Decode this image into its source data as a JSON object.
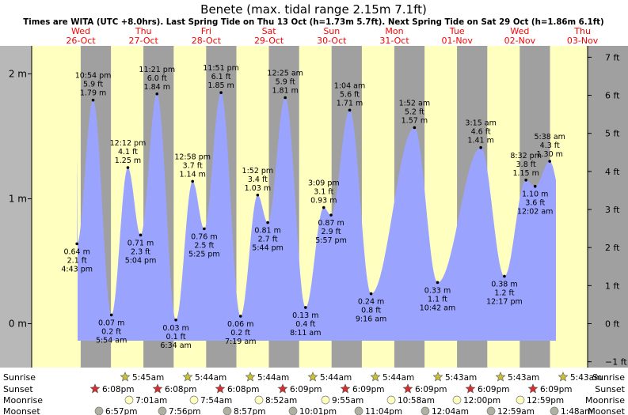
{
  "header": {
    "title": "Benete (max. tidal range 2.15m 7.1ft)",
    "subtitle": "Times are WITA (UTC +8.0hrs). Last Spring Tide on Thu 13 Oct (h=1.73m 5.7ft). Next Spring Tide on Sat 29 Oct (h=1.86m 6.1ft)"
  },
  "colors": {
    "day": "#ffffc0",
    "night": "#a0a0a0",
    "tide": "#9aa4ff",
    "day_label": "#ff0000",
    "left_margin": "#b8b8b8",
    "sun_star": "#c8c03c",
    "sunset_star": "#d03030",
    "moonrise": "#ffffc0",
    "moonset": "#b0b0a0"
  },
  "days": [
    {
      "dow": "Wed",
      "date": "26-Oct"
    },
    {
      "dow": "Thu",
      "date": "27-Oct"
    },
    {
      "dow": "Fri",
      "date": "28-Oct"
    },
    {
      "dow": "Sat",
      "date": "29-Oct"
    },
    {
      "dow": "Sun",
      "date": "30-Oct"
    },
    {
      "dow": "Mon",
      "date": "31-Oct"
    },
    {
      "dow": "Tue",
      "date": "01-Nov"
    },
    {
      "dow": "Wed",
      "date": "02-Nov"
    },
    {
      "dow": "Thu",
      "date": "03-Nov"
    }
  ],
  "rows": {
    "sunrise": {
      "label": "Sunrise",
      "times": [
        "5:45am",
        "5:44am",
        "5:44am",
        "5:44am",
        "5:44am",
        "5:43am",
        "5:43am",
        "5:43am"
      ]
    },
    "sunset": {
      "label": "Sunset",
      "times": [
        "6:08pm",
        "6:08pm",
        "6:08pm",
        "6:09pm",
        "6:09pm",
        "6:09pm",
        "6:09pm",
        "6:09pm"
      ]
    },
    "moonrise": {
      "label": "Moonrise",
      "times": [
        "7:01am",
        "7:54am",
        "8:52am",
        "9:55am",
        "10:58am",
        "12:00pm",
        "12:59pm"
      ]
    },
    "moonset": {
      "label": "Moonset",
      "times": [
        "6:57pm",
        "7:56pm",
        "8:57pm",
        "10:01pm",
        "11:04pm",
        "12:04am",
        "12:59am",
        "1:48am"
      ]
    }
  },
  "chart_data": {
    "type": "area",
    "title": "Benete (max. tidal range 2.15m 7.1ft)",
    "x_range": [
      "2022-10-26T00:00",
      "2022-11-03T00:00"
    ],
    "y_left": {
      "unit": "m",
      "range": [
        -0.17,
        2.2
      ],
      "ticks": [
        "0 m",
        "1 m",
        "2 m"
      ]
    },
    "y_right": {
      "unit": "ft",
      "ticks": [
        "−1 ft",
        "0 ft",
        "1 ft",
        "2 ft",
        "3 ft",
        "4 ft",
        "5 ft",
        "6 ft",
        "7 ft"
      ]
    },
    "series": [
      {
        "values": [
          {
            "time": "2022-10-26 16:43",
            "m": 0.64,
            "label": [
              "0.64 m",
              "2.1 ft",
              "4:43 pm"
            ],
            "kind": "low"
          },
          {
            "time": "2022-10-26 22:54",
            "m": 1.79,
            "label": [
              "10:54 pm",
              "5.9 ft",
              "1.79 m"
            ],
            "kind": "high"
          },
          {
            "time": "2022-10-27 05:54",
            "m": 0.07,
            "label": [
              "0.07 m",
              "0.2 ft",
              "5:54 am"
            ],
            "kind": "low"
          },
          {
            "time": "2022-10-27 12:12",
            "m": 1.25,
            "label": [
              "12:12 pm",
              "4.1 ft",
              "1.25 m"
            ],
            "kind": "high"
          },
          {
            "time": "2022-10-27 17:04",
            "m": 0.71,
            "label": [
              "0.71 m",
              "2.3 ft",
              "5:04 pm"
            ],
            "kind": "low"
          },
          {
            "time": "2022-10-27 23:21",
            "m": 1.84,
            "label": [
              "11:21 pm",
              "6.0 ft",
              "1.84 m"
            ],
            "kind": "high"
          },
          {
            "time": "2022-10-28 06:34",
            "m": 0.03,
            "label": [
              "0.03 m",
              "0.1 ft",
              "6:34 am"
            ],
            "kind": "low"
          },
          {
            "time": "2022-10-28 12:58",
            "m": 1.14,
            "label": [
              "12:58 pm",
              "3.7 ft",
              "1.14 m"
            ],
            "kind": "high"
          },
          {
            "time": "2022-10-28 17:25",
            "m": 0.76,
            "label": [
              "0.76 m",
              "2.5 ft",
              "5:25 pm"
            ],
            "kind": "low"
          },
          {
            "time": "2022-10-28 23:51",
            "m": 1.85,
            "label": [
              "11:51 pm",
              "6.1 ft",
              "1.85 m"
            ],
            "kind": "high"
          },
          {
            "time": "2022-10-29 07:19",
            "m": 0.06,
            "label": [
              "0.06 m",
              "0.2 ft",
              "7:19 am"
            ],
            "kind": "low"
          },
          {
            "time": "2022-10-29 13:52",
            "m": 1.03,
            "label": [
              "1:52 pm",
              "3.4 ft",
              "1.03 m"
            ],
            "kind": "high"
          },
          {
            "time": "2022-10-29 17:44",
            "m": 0.81,
            "label": [
              "0.81 m",
              "2.7 ft",
              "5:44 pm"
            ],
            "kind": "low"
          },
          {
            "time": "2022-10-30 00:25",
            "m": 1.81,
            "label": [
              "12:25 am",
              "5.9 ft",
              "1.81 m"
            ],
            "kind": "high"
          },
          {
            "time": "2022-10-30 08:11",
            "m": 0.13,
            "label": [
              "0.13 m",
              "0.4 ft",
              "8:11 am"
            ],
            "kind": "low"
          },
          {
            "time": "2022-10-30 15:09",
            "m": 0.93,
            "label": [
              "3:09 pm",
              "3.1 ft",
              "0.93 m"
            ],
            "kind": "high"
          },
          {
            "time": "2022-10-30 17:57",
            "m": 0.87,
            "label": [
              "0.87 m",
              "2.9 ft",
              "5:57 pm"
            ],
            "kind": "low"
          },
          {
            "time": "2022-10-31 01:04",
            "m": 1.71,
            "label": [
              "1:04 am",
              "5.6 ft",
              "1.71 m"
            ],
            "kind": "high"
          },
          {
            "time": "2022-10-31 09:16",
            "m": 0.24,
            "label": [
              "0.24 m",
              "0.8 ft",
              "9:16 am"
            ],
            "kind": "low"
          },
          {
            "time": "2022-11-01 01:52",
            "m": 1.57,
            "label": [
              "1:52 am",
              "5.2 ft",
              "1.57 m"
            ],
            "kind": "high"
          },
          {
            "time": "2022-11-01 10:42",
            "m": 0.33,
            "label": [
              "0.33 m",
              "1.1 ft",
              "10:42 am"
            ],
            "kind": "low"
          },
          {
            "time": "2022-11-02 03:15",
            "m": 1.41,
            "label": [
              "3:15 am",
              "4.6 ft",
              "1.41 m"
            ],
            "kind": "high"
          },
          {
            "time": "2022-11-02 12:17",
            "m": 0.38,
            "label": [
              "0.38 m",
              "1.2 ft",
              "12:17 pm"
            ],
            "kind": "low"
          },
          {
            "time": "2022-11-02 20:32",
            "m": 1.15,
            "label": [
              "8:32 pm",
              "3.8 ft",
              "1.15 m"
            ],
            "kind": "high"
          },
          {
            "time": "2022-11-03 00:02",
            "m": 1.1,
            "label": [
              "1.10 m",
              "3.6 ft",
              "12:02 am"
            ],
            "kind": "low"
          },
          {
            "time": "2022-11-03 05:38",
            "m": 1.3,
            "label": [
              "5:38 am",
              "4.3 ft",
              "1.30 m"
            ],
            "kind": "high"
          }
        ]
      }
    ],
    "grid": false
  }
}
